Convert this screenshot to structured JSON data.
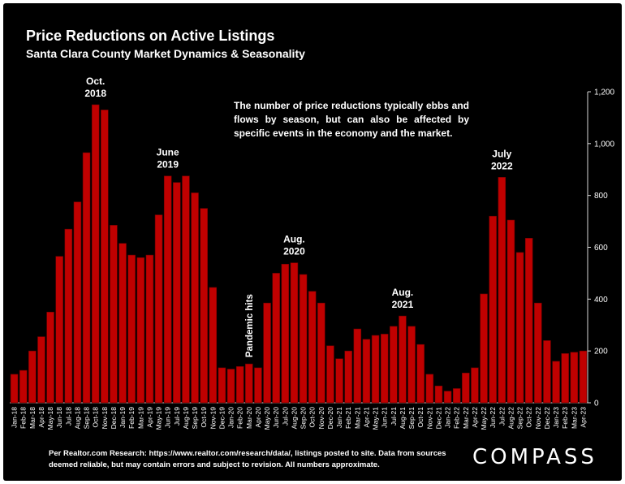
{
  "header": {
    "title": "Price Reductions on Active Listings",
    "subtitle": "Santa Clara County Market Dynamics & Seasonality"
  },
  "note": "The number of price reductions typically ebbs and flows by season, but can also be affected by specific events in the economy and the market.",
  "footer": "Per Realtor.com Research:  https://www.realtor.com/research/data/, listings posted to site. Data from sources deemed reliable, but may contain errors and subject to revision. All numbers approximate.",
  "brand": {
    "name": "COMPASS"
  },
  "colors": {
    "background": "#000000",
    "bar": "#c00000",
    "bar_stroke": "#6e0000",
    "text": "#ffffff"
  },
  "chart_data": {
    "type": "bar",
    "title": "Price Reductions on Active Listings",
    "subtitle": "Santa Clara County Market Dynamics & Seasonality",
    "xlabel": "",
    "ylabel": "",
    "ylim": [
      0,
      1200
    ],
    "y_ticks": [
      0,
      200,
      400,
      600,
      800,
      1000,
      1200
    ],
    "y_tick_labels": [
      "0",
      "200",
      "400",
      "600",
      "800",
      "1,000",
      "1,200"
    ],
    "y_axis_side": "right",
    "grid": false,
    "categories": [
      "Jan-18",
      "Feb-18",
      "Mar-18",
      "Apr-18",
      "May-18",
      "Jun-18",
      "Jul-18",
      "Aug-18",
      "Sep-18",
      "Oct-18",
      "Nov-18",
      "Dec-18",
      "Jan-19",
      "Feb-19",
      "Mar-19",
      "Apr-19",
      "May-19",
      "Jun-19",
      "Jul-19",
      "Aug-19",
      "Sep-19",
      "Oct-19",
      "Nov-19",
      "Dec-19",
      "Jan-20",
      "Feb-20",
      "Mar-20",
      "Apr-20",
      "May-20",
      "Jun-20",
      "Jul-20",
      "Aug-20",
      "Sep-20",
      "Oct-20",
      "Nov-20",
      "Dec-20",
      "Jan-21",
      "Feb-21",
      "Mar-21",
      "Apr-21",
      "May-21",
      "Jun-21",
      "Jul-21",
      "Aug-21",
      "Sep-21",
      "Oct-21",
      "Nov-21",
      "Dec-21",
      "Jan-22",
      "Feb-22",
      "Mar-22",
      "Apr-22",
      "May-22",
      "Jun-22",
      "Jul-22",
      "Aug-22",
      "Sep-22",
      "Oct-22",
      "Nov-22",
      "Dec-22",
      "Jan-23",
      "Feb-23",
      "Mar-23",
      "Apr-23"
    ],
    "values": [
      110,
      125,
      200,
      255,
      350,
      565,
      670,
      775,
      965,
      1150,
      1130,
      685,
      615,
      570,
      560,
      570,
      725,
      875,
      850,
      875,
      810,
      750,
      445,
      135,
      130,
      140,
      150,
      135,
      385,
      500,
      535,
      540,
      495,
      430,
      385,
      220,
      170,
      200,
      285,
      245,
      260,
      265,
      295,
      335,
      295,
      225,
      110,
      65,
      45,
      55,
      115,
      135,
      420,
      720,
      870,
      705,
      580,
      635,
      385,
      240,
      160,
      190,
      195,
      200
    ],
    "annotations": [
      {
        "text": [
          "Oct.",
          "2018"
        ],
        "category": "Oct-18"
      },
      {
        "text": [
          "June",
          "2019"
        ],
        "category": "Jun-19"
      },
      {
        "text": [
          "Pandemic hits"
        ],
        "category": "Mar-20",
        "rotated": true
      },
      {
        "text": [
          "Aug.",
          "2020"
        ],
        "category": "Aug-20"
      },
      {
        "text": [
          "Aug.",
          "2021"
        ],
        "category": "Aug-21"
      },
      {
        "text": [
          "July",
          "2022"
        ],
        "category": "Jul-22"
      }
    ]
  }
}
